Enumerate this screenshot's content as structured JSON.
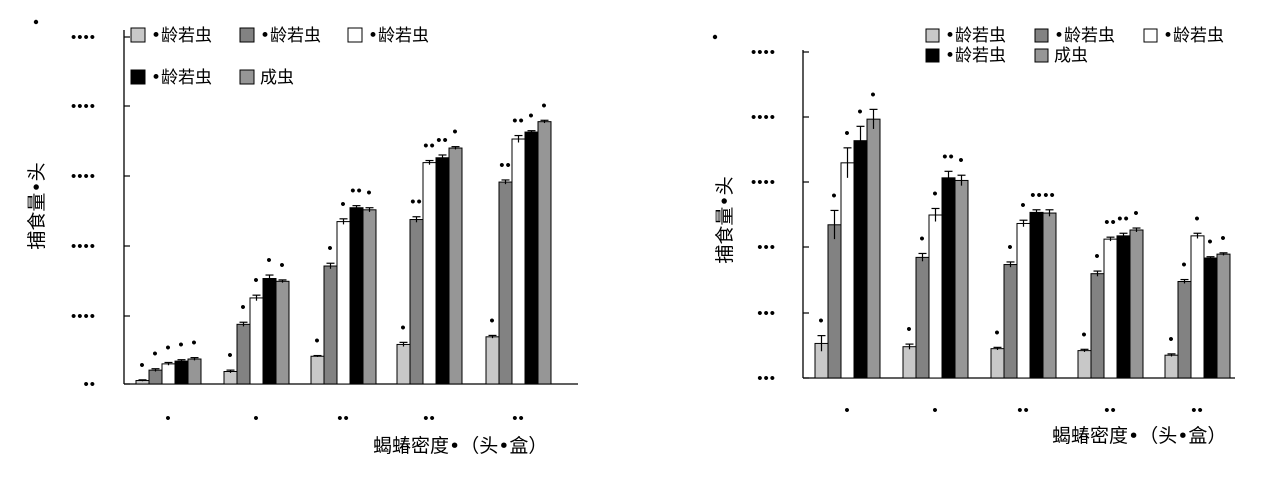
{
  "chart_data": [
    {
      "type": "bar",
      "categories": [
        "•",
        "•",
        "••",
        "••",
        "••"
      ],
      "ytick_labels": [
        "••",
        "••••",
        "••••",
        "••••",
        "••••",
        "••••"
      ],
      "ylim": [
        0,
        500
      ],
      "ylabel": "捕食量•头",
      "xlabel": "蝎蝽密度•（头•盒）",
      "legend_placement": "top-left-inside",
      "series": [
        {
          "name": "•龄若虫",
          "values": [
            5,
            18,
            40,
            57,
            68
          ],
          "errors": [
            1,
            2,
            1,
            3,
            2
          ],
          "color": "#c8c8c8"
        },
        {
          "name": "•龄若虫",
          "values": [
            20,
            86,
            170,
            237,
            291
          ],
          "errors": [
            2,
            3,
            4,
            4,
            3
          ],
          "color": "#828282"
        },
        {
          "name": "•龄若虫",
          "values": [
            29,
            124,
            234,
            319,
            353
          ],
          "errors": [
            2,
            4,
            4,
            3,
            5
          ],
          "color": "#ffffff"
        },
        {
          "name": "•龄若虫",
          "values": [
            33,
            152,
            254,
            326,
            363
          ],
          "errors": [
            2,
            5,
            3,
            4,
            2
          ],
          "color": "#000000"
        },
        {
          "name": "成虫",
          "values": [
            36,
            148,
            251,
            340,
            378
          ],
          "errors": [
            2,
            2,
            3,
            2,
            2
          ],
          "color": "#969696"
        }
      ],
      "significance": [
        [
          "•",
          "•",
          "•",
          "•",
          "•"
        ],
        [
          "•",
          "•",
          "•",
          "••",
          "••"
        ],
        [
          "•",
          "•",
          "•",
          "••",
          "••"
        ],
        [
          "•",
          "•",
          "••",
          "••",
          "•"
        ],
        [
          "•",
          "•",
          "•",
          "•",
          "•"
        ]
      ]
    },
    {
      "type": "bar",
      "categories": [
        "•",
        "•",
        "••",
        "••",
        "••"
      ],
      "ytick_labels": [
        "•••",
        "•••",
        "•••",
        "••••",
        "••••",
        "••••"
      ],
      "ylim": [
        0,
        500
      ],
      "ylabel": "捕食量•头",
      "xlabel": "蝎蝽密度•（头•盒）",
      "legend_placement": "top-right-inside",
      "series": [
        {
          "name": "•龄若虫",
          "values": [
            53,
            48,
            45,
            42,
            35
          ],
          "errors": [
            12,
            4,
            2,
            2,
            2
          ],
          "color": "#c8c8c8"
        },
        {
          "name": "•龄若虫",
          "values": [
            235,
            185,
            174,
            160,
            148
          ],
          "errors": [
            22,
            6,
            4,
            4,
            3
          ],
          "color": "#828282"
        },
        {
          "name": "•龄若虫",
          "values": [
            330,
            250,
            237,
            213,
            218
          ],
          "errors": [
            23,
            10,
            5,
            3,
            4
          ],
          "color": "#ffffff"
        },
        {
          "name": "•龄若虫",
          "values": [
            364,
            307,
            254,
            218,
            184
          ],
          "errors": [
            22,
            10,
            4,
            4,
            2
          ],
          "color": "#000000"
        },
        {
          "name": "成虫",
          "values": [
            397,
            303,
            253,
            227,
            190
          ],
          "errors": [
            15,
            8,
            5,
            3,
            2
          ],
          "color": "#969696"
        }
      ],
      "significance": [
        [
          "•",
          "•",
          "•",
          "•",
          "•"
        ],
        [
          "•",
          "•",
          "•",
          "•",
          "•"
        ],
        [
          "•",
          "•",
          "•",
          "••",
          "•"
        ],
        [
          "•",
          "••",
          "••",
          "••",
          "•"
        ],
        [
          "•",
          "•",
          "••",
          "•",
          "•"
        ]
      ]
    }
  ]
}
